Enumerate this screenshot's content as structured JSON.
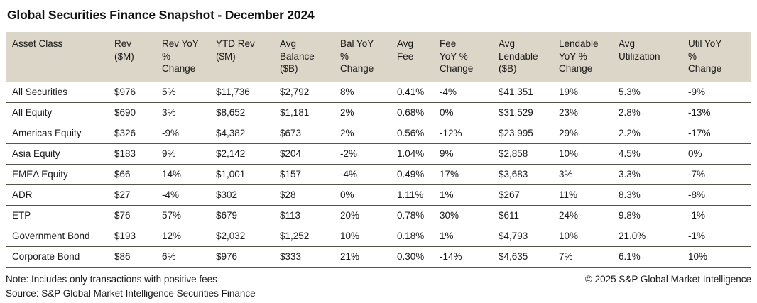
{
  "title": "Global Securities Finance Snapshot - December 2024",
  "colors": {
    "header_background": "#dcd6c9",
    "row_separator": "#55544b",
    "text": "#191919",
    "page_background": "#ffffff"
  },
  "chart_data": {
    "type": "table",
    "title": "Global Securities Finance Snapshot - December 2024",
    "columns": [
      "Asset Class",
      "Rev\n($M)",
      "Rev YoY\n%\nChange",
      "YTD Rev\n($M)",
      "Avg\nBalance\n($B)",
      "Bal YoY\n%\nChange",
      "Avg\nFee",
      "Fee\nYoY %\nChange",
      "Avg\nLendable\n($B)",
      "Lendable\nYoY %\nChange",
      "Avg\nUtilization",
      "Util YoY\n%\nChange"
    ],
    "rows": [
      [
        "All Securities",
        "$976",
        "5%",
        "$11,736",
        "$2,792",
        "8%",
        "0.41%",
        "-4%",
        "$41,351",
        "19%",
        "5.3%",
        "-9%"
      ],
      [
        "All Equity",
        "$690",
        "3%",
        "$8,652",
        "$1,181",
        "2%",
        "0.68%",
        "0%",
        "$31,529",
        "23%",
        "2.8%",
        "-13%"
      ],
      [
        "Americas Equity",
        "$326",
        "-9%",
        "$4,382",
        "$673",
        "2%",
        "0.56%",
        "-12%",
        "$23,995",
        "29%",
        "2.2%",
        "-17%"
      ],
      [
        "Asia Equity",
        "$183",
        "9%",
        "$2,142",
        "$204",
        "-2%",
        "1.04%",
        "9%",
        "$2,858",
        "10%",
        "4.5%",
        "0%"
      ],
      [
        "EMEA Equity",
        "$66",
        "14%",
        "$1,001",
        "$157",
        "-4%",
        "0.49%",
        "17%",
        "$3,683",
        "3%",
        "3.3%",
        "-7%"
      ],
      [
        "ADR",
        "$27",
        "-4%",
        "$302",
        "$28",
        "0%",
        "1.11%",
        "1%",
        "$267",
        "11%",
        "8.3%",
        "-8%"
      ],
      [
        "ETP",
        "$76",
        "57%",
        "$679",
        "$113",
        "20%",
        "0.78%",
        "30%",
        "$611",
        "24%",
        "9.8%",
        "-1%"
      ],
      [
        "Government Bond",
        "$193",
        "12%",
        "$2,032",
        "$1,252",
        "10%",
        "0.18%",
        "1%",
        "$4,793",
        "10%",
        "21.0%",
        "-1%"
      ],
      [
        "Corporate Bond",
        "$86",
        "6%",
        "$976",
        "$333",
        "21%",
        "0.30%",
        "-14%",
        "$4,635",
        "7%",
        "6.1%",
        "10%"
      ]
    ]
  },
  "footer": {
    "note": "Note: Includes only transactions with positive fees",
    "source": "Source: S&P Global Market Intelligence Securities Finance",
    "copyright": "© 2025 S&P Global Market Intelligence"
  }
}
